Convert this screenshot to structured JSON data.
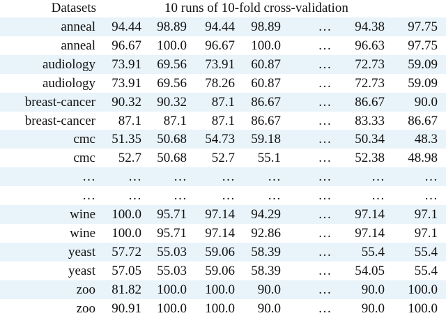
{
  "header": [
    "Datasets",
    "10 runs of 10-fold cross-validation"
  ],
  "table": {
    "rows": [
      [
        "anneal",
        "94.44",
        "98.89",
        "94.44",
        "98.89",
        "…",
        "94.38",
        "97.75"
      ],
      [
        "anneal",
        "96.67",
        "100.0",
        "96.67",
        "100.0",
        "…",
        "96.63",
        "97.75"
      ],
      [
        "audiology",
        "73.91",
        "69.56",
        "73.91",
        "60.87",
        "…",
        "72.73",
        "59.09"
      ],
      [
        "audiology",
        "73.91",
        "69.56",
        "78.26",
        "60.87",
        "…",
        "72.73",
        "59.09"
      ],
      [
        "breast-cancer",
        "90.32",
        "90.32",
        "87.1",
        "86.67",
        "…",
        "86.67",
        "90.0"
      ],
      [
        "breast-cancer",
        "87.1",
        "87.1",
        "87.1",
        "86.67",
        "…",
        "83.33",
        "86.67"
      ],
      [
        "cmc",
        "51.35",
        "50.68",
        "54.73",
        "59.18",
        "…",
        "50.34",
        "48.3"
      ],
      [
        "cmc",
        "52.7",
        "50.68",
        "52.7",
        "55.1",
        "…",
        "52.38",
        "48.98"
      ],
      [
        "…",
        "…",
        "…",
        "…",
        "…",
        "…",
        "…",
        "…"
      ],
      [
        "…",
        "…",
        "…",
        "…",
        "…",
        "…",
        "…",
        "…"
      ],
      [
        "wine",
        "100.0",
        "95.71",
        "97.14",
        "94.29",
        "…",
        "97.14",
        "97.1"
      ],
      [
        "wine",
        "100.0",
        "95.71",
        "97.14",
        "92.86",
        "…",
        "97.14",
        "97.1"
      ],
      [
        "yeast",
        "57.72",
        "55.03",
        "59.06",
        "58.39",
        "…",
        "55.4",
        "55.4"
      ],
      [
        "yeast",
        "57.05",
        "55.03",
        "59.06",
        "58.39",
        "…",
        "54.05",
        "55.4"
      ],
      [
        "zoo",
        "81.82",
        "100.0",
        "100.0",
        "90.0",
        "…",
        "90.0",
        "100.0"
      ],
      [
        "zoo",
        "90.91",
        "100.0",
        "100.0",
        "90.0",
        "…",
        "90.0",
        "100.0"
      ]
    ]
  }
}
